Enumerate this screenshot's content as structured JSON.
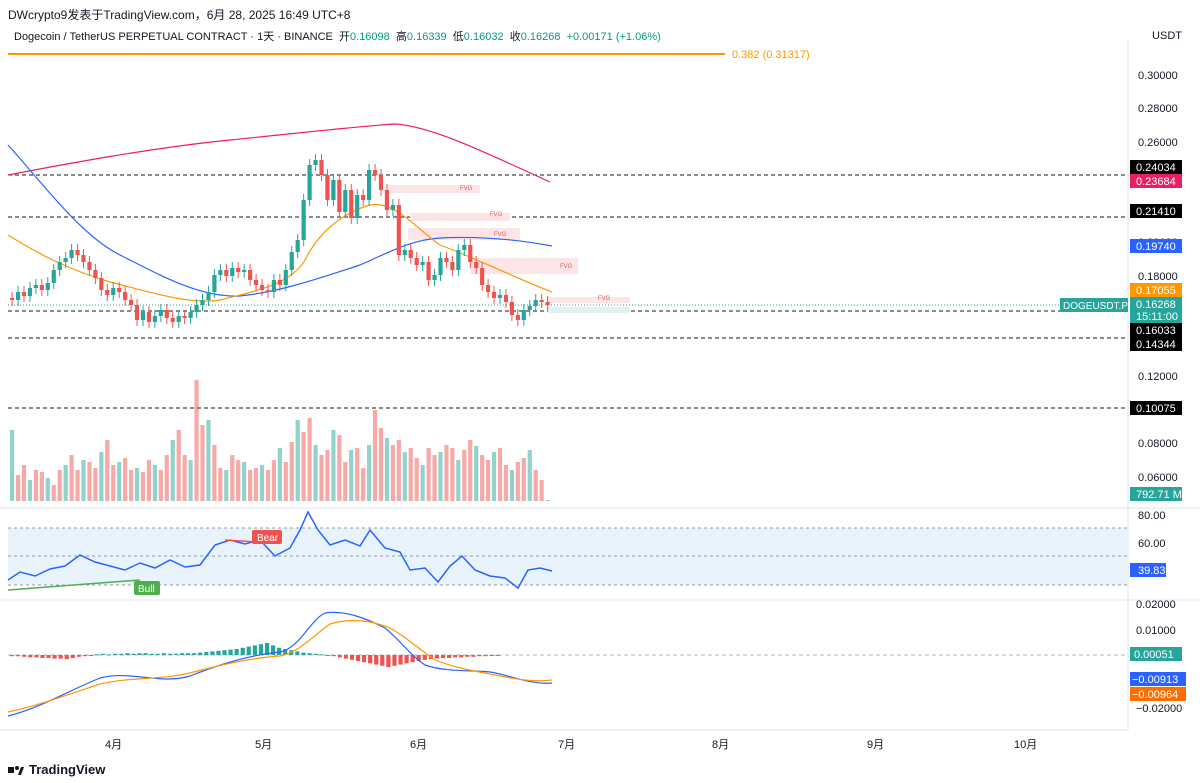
{
  "header": {
    "attribution": "DWcrypto9发表于TradingView.com，6月 28, 2025 16:49 UTC+8",
    "symbol_desc": "Dogecoin / TetherUS PERPETUAL CONTRACT · 1天 · BINANCE",
    "open_label": "开",
    "open": "0.16098",
    "high_label": "高",
    "high": "0.16339",
    "low_label": "低",
    "low": "0.16032",
    "close_label": "收",
    "close": "0.16268",
    "change": "+0.00171 (+1.06%)",
    "currency": "USDT"
  },
  "fib_label": "0.382 (0.31317)",
  "price_axis": {
    "ticks": [
      "0.30000",
      "0.28000",
      "0.26000",
      "0.24000",
      "0.22000",
      "0.20000",
      "0.18000",
      "0.16000",
      "0.14000",
      "0.12000",
      "0.10000",
      "0.08000",
      "0.06000"
    ],
    "tags": [
      {
        "text": "0.24034",
        "bg": "#000000"
      },
      {
        "text": "0.23684",
        "bg": "#e91e63"
      },
      {
        "text": "0.21410",
        "bg": "#000000"
      },
      {
        "text": "0.19740",
        "bg": "#2962ff"
      },
      {
        "text": "0.17055",
        "bg": "#ff9800"
      },
      {
        "text": "0.16268",
        "bg": "#26a69a"
      },
      {
        "text": "15:11:00",
        "bg": "#26a69a"
      },
      {
        "text": "0.16033",
        "bg": "#000000"
      },
      {
        "text": "0.14344",
        "bg": "#000000"
      },
      {
        "text": "0.10075",
        "bg": "#000000"
      },
      {
        "text": "792.71 M",
        "bg": "#26a69a"
      }
    ],
    "symbol_tag": "DOGEUSDT.P"
  },
  "fvg_label": "FVG",
  "rsi": {
    "ticks": [
      "80.00",
      "60.00",
      "40.00"
    ],
    "value_tag": "39.83",
    "bear_label": "Bear",
    "bull_label": "Bull"
  },
  "macd": {
    "ticks": [
      "0.02000",
      "0.01000",
      "−0.02000"
    ],
    "hist_tag": "0.00051",
    "macd_tag": "−0.00913",
    "signal_tag": "−0.00964"
  },
  "time_axis": [
    "4月",
    "5月",
    "6月",
    "7月",
    "8月",
    "9月",
    "10月"
  ],
  "footer": {
    "brand": "TradingView"
  },
  "colors": {
    "up": "#26a69a",
    "down": "#ef5350",
    "ma_blue": "#2962ff",
    "ma_orange": "#ff9800",
    "ma_red": "#e91e63",
    "fib": "#ff9800"
  }
}
